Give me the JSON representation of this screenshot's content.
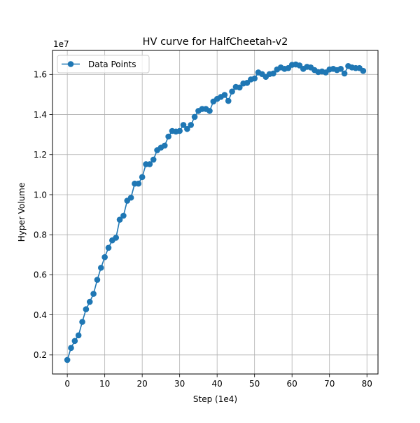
{
  "chart_data": {
    "type": "line",
    "title": "HV curve for HalfCheetah-v2",
    "xlabel": "Step (1e4)",
    "ylabel": "Hyper Volume",
    "y_offset_label": "1e7",
    "xlim": [
      -3.95,
      82.95
    ],
    "ylim": [
      0.105,
      1.72
    ],
    "xticks": [
      0,
      10,
      20,
      30,
      40,
      50,
      60,
      70,
      80
    ],
    "xtick_labels": [
      "0",
      "10",
      "20",
      "30",
      "40",
      "50",
      "60",
      "70",
      "80"
    ],
    "yticks": [
      0.2,
      0.4,
      0.6,
      0.8,
      1.0,
      1.2,
      1.4,
      1.6
    ],
    "ytick_labels": [
      "0.2",
      "0.4",
      "0.6",
      "0.8",
      "1.0",
      "1.2",
      "1.4",
      "1.6"
    ],
    "grid": true,
    "legend_position": "top-left",
    "color": "#1f77b4",
    "series": [
      {
        "name": "Data Points",
        "marker": "circle",
        "x": [
          0,
          1,
          2,
          3,
          4,
          5,
          6,
          7,
          8,
          9,
          10,
          11,
          12,
          13,
          14,
          15,
          16,
          17,
          18,
          19,
          20,
          21,
          22,
          23,
          24,
          25,
          26,
          27,
          28,
          29,
          30,
          31,
          32,
          33,
          34,
          35,
          36,
          37,
          38,
          39,
          40,
          41,
          42,
          43,
          44,
          45,
          46,
          47,
          48,
          49,
          50,
          51,
          52,
          53,
          54,
          55,
          56,
          57,
          58,
          59,
          60,
          61,
          62,
          63,
          64,
          65,
          66,
          67,
          68,
          69,
          70,
          71,
          72,
          73,
          74,
          75,
          76,
          77,
          78,
          79
        ],
        "y": [
          0.175,
          0.235,
          0.27,
          0.298,
          0.365,
          0.428,
          0.465,
          0.505,
          0.575,
          0.635,
          0.688,
          0.735,
          0.772,
          0.785,
          0.875,
          0.895,
          0.97,
          0.985,
          1.055,
          1.055,
          1.088,
          1.152,
          1.152,
          1.175,
          1.222,
          1.235,
          1.245,
          1.29,
          1.318,
          1.315,
          1.318,
          1.348,
          1.328,
          1.348,
          1.388,
          1.418,
          1.428,
          1.428,
          1.418,
          1.465,
          1.478,
          1.488,
          1.498,
          1.468,
          1.515,
          1.538,
          1.535,
          1.555,
          1.558,
          1.575,
          1.58,
          1.61,
          1.602,
          1.588,
          1.602,
          1.605,
          1.625,
          1.635,
          1.628,
          1.632,
          1.648,
          1.65,
          1.645,
          1.628,
          1.638,
          1.635,
          1.622,
          1.612,
          1.615,
          1.61,
          1.625,
          1.628,
          1.622,
          1.628,
          1.605,
          1.642,
          1.635,
          1.632,
          1.632,
          1.618
        ]
      }
    ]
  }
}
